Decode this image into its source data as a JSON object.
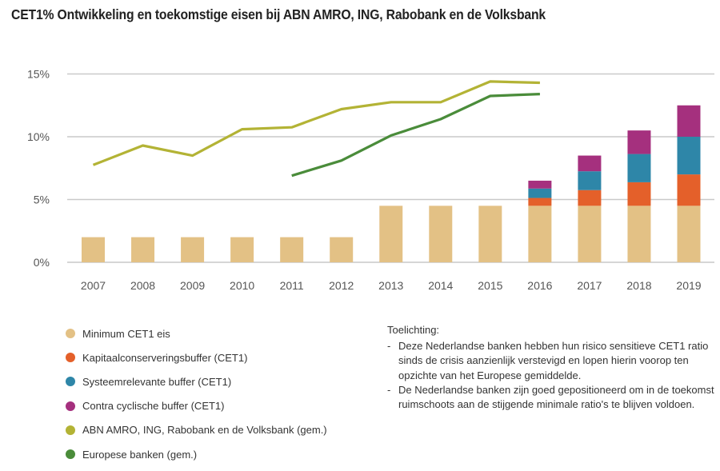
{
  "title": "CET1% Ontwikkeling en toekomstige eisen bij ABN AMRO, ING, Rabobank en de Volksbank",
  "chart_data": {
    "type": "bar",
    "subtype": "stacked bar with line overlay",
    "title": "CET1% Ontwikkeling en toekomstige eisen bij ABN AMRO, ING, Rabobank en de Volksbank",
    "xlabel": "",
    "ylabel": "",
    "categories": [
      "2007",
      "2008",
      "2009",
      "2010",
      "2011",
      "2012",
      "2013",
      "2014",
      "2015",
      "2016",
      "2017",
      "2018",
      "2019"
    ],
    "ylim": [
      0,
      15
    ],
    "yticks": [
      0,
      5,
      10,
      15
    ],
    "ytick_labels": [
      "0%",
      "5%",
      "10%",
      "15%"
    ],
    "grid": true,
    "bar_series": [
      {
        "name": "Minimum CET1 eis",
        "color": "#e3c185",
        "values": [
          2,
          2,
          2,
          2,
          2,
          2,
          4.5,
          4.5,
          4.5,
          4.5,
          4.5,
          4.5,
          4.5
        ]
      },
      {
        "name": "Kapitaalconserveringsbuffer (CET1)",
        "color": "#e4602a",
        "values": [
          0,
          0,
          0,
          0,
          0,
          0,
          0,
          0,
          0,
          0.625,
          1.25,
          1.875,
          2.5
        ]
      },
      {
        "name": "Systeemrelevante buffer (CET1)",
        "color": "#2e86a8",
        "values": [
          0,
          0,
          0,
          0,
          0,
          0,
          0,
          0,
          0,
          0.75,
          1.5,
          2.25,
          3.0
        ]
      },
      {
        "name": "Contra cyclische buffer (CET1)",
        "color": "#a5307e",
        "values": [
          0,
          0,
          0,
          0,
          0,
          0,
          0,
          0,
          0,
          0.625,
          1.25,
          1.875,
          2.5
        ]
      }
    ],
    "line_series": [
      {
        "name": "ABN AMRO, ING, Rabobank en de Volksbank (gem.)",
        "color": "#b3b335",
        "values": [
          7.75,
          9.3,
          8.5,
          10.6,
          10.75,
          12.2,
          12.75,
          12.75,
          14.4,
          14.3,
          null,
          null,
          null
        ]
      },
      {
        "name": "Europese banken (gem.)",
        "color": "#4a8c3a",
        "values": [
          null,
          null,
          null,
          null,
          6.9,
          8.1,
          10.1,
          11.4,
          13.25,
          13.4,
          null,
          null,
          null
        ]
      }
    ],
    "legend_position": "bottom-left"
  },
  "legend": [
    {
      "label": "Minimum CET1 eis",
      "color": "#e3c185"
    },
    {
      "label": "Kapitaalconserveringsbuffer (CET1)",
      "color": "#e4602a"
    },
    {
      "label": "Systeemrelevante buffer (CET1)",
      "color": "#2e86a8"
    },
    {
      "label": "Contra cyclische buffer (CET1)",
      "color": "#a5307e"
    },
    {
      "label": "ABN AMRO, ING, Rabobank en de Volksbank (gem.)",
      "color": "#b3b335"
    },
    {
      "label": "Europese banken (gem.)",
      "color": "#4a8c3a"
    }
  ],
  "notes": {
    "heading": "Toelichting:",
    "items": [
      "Deze Nederlandse banken hebben hun risico sensitieve CET1 ratio sinds de crisis aanzienlijk verstevigd en lopen hierin voorop ten opzichte van het Europese gemiddelde.",
      "De Nederlandse banken zijn goed gepositioneerd om in de toekomst ruimschoots aan de stijgende minimale ratio's te blijven voldoen."
    ],
    "bullet": "-"
  }
}
